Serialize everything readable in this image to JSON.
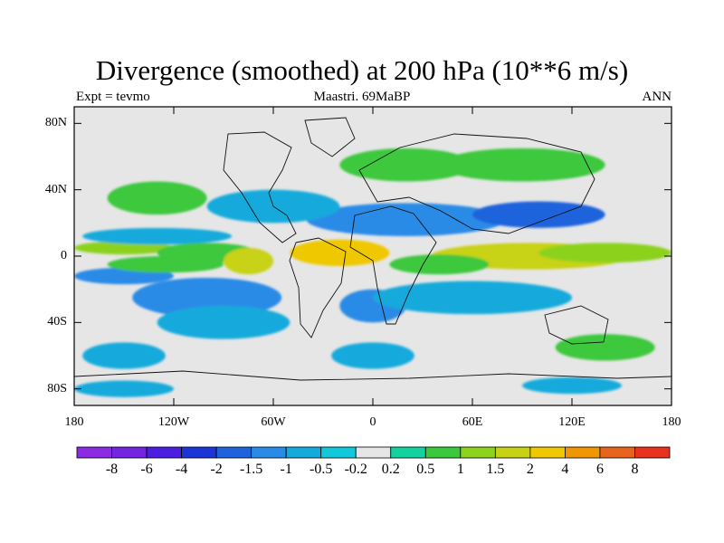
{
  "title": "Divergence (smoothed) at 200 hPa (10**6 m/s)",
  "subtitle_left": "Expt = tevmo",
  "subtitle_center": "Maastri.  69MaBP",
  "subtitle_right": "ANN",
  "y_axis": {
    "ticks": [
      80,
      40,
      0,
      -40,
      -80
    ],
    "labels": [
      "80N",
      "40N",
      "0",
      "40S",
      "80S"
    ],
    "range": [
      -90,
      90
    ]
  },
  "x_axis": {
    "ticks": [
      -180,
      -120,
      -60,
      0,
      60,
      120,
      180
    ],
    "labels": [
      "180",
      "120W",
      "60W",
      "0",
      "60E",
      "120E",
      "180"
    ],
    "range": [
      -180,
      180
    ]
  },
  "colorbar": {
    "colors": [
      "#8b2be2",
      "#7226e0",
      "#4b1ee0",
      "#1c36d6",
      "#1f63dc",
      "#2a8be6",
      "#14aadc",
      "#14c8dc",
      "#e6e6e6",
      "#14d2a0",
      "#3cc83c",
      "#8cd21e",
      "#c8d214",
      "#f0c800",
      "#f09600",
      "#e6641e",
      "#e6321e"
    ],
    "labels": [
      "-8",
      "-6",
      "-4",
      "-2",
      "-1.5",
      "-1",
      "-0.5",
      "-0.2",
      "0.2",
      "0.5",
      "1",
      "1.5",
      "2",
      "4",
      "6",
      "8"
    ]
  },
  "field_blobs": [
    {
      "lon": -150,
      "lat": 5,
      "rx": 30,
      "ry": 4,
      "level": 2
    },
    {
      "lon": -150,
      "lat": -12,
      "rx": 30,
      "ry": 5,
      "level": -2
    },
    {
      "lon": -130,
      "lat": 12,
      "rx": 45,
      "ry": 5,
      "level": -1
    },
    {
      "lon": -125,
      "lat": -5,
      "rx": 35,
      "ry": 5,
      "level": 1
    },
    {
      "lon": -100,
      "lat": 2,
      "rx": 30,
      "ry": 6,
      "level": 1
    },
    {
      "lon": -75,
      "lat": -3,
      "rx": 15,
      "ry": 8,
      "level": 3
    },
    {
      "lon": -20,
      "lat": 2,
      "rx": 30,
      "ry": 8,
      "level": 4
    },
    {
      "lon": 95,
      "lat": 0,
      "rx": 60,
      "ry": 8,
      "level": 3
    },
    {
      "lon": 140,
      "lat": 2,
      "rx": 40,
      "ry": 6,
      "level": 2
    },
    {
      "lon": 40,
      "lat": -5,
      "rx": 30,
      "ry": 6,
      "level": 1
    },
    {
      "lon": -100,
      "lat": -25,
      "rx": 45,
      "ry": 12,
      "level": -2
    },
    {
      "lon": -90,
      "lat": -40,
      "rx": 40,
      "ry": 10,
      "level": -1
    },
    {
      "lon": 0,
      "lat": -30,
      "rx": 20,
      "ry": 10,
      "level": -2
    },
    {
      "lon": 60,
      "lat": -25,
      "rx": 60,
      "ry": 10,
      "level": -1
    },
    {
      "lon": 20,
      "lat": 22,
      "rx": 60,
      "ry": 10,
      "level": -2
    },
    {
      "lon": 100,
      "lat": 25,
      "rx": 40,
      "ry": 8,
      "level": -3
    },
    {
      "lon": -60,
      "lat": 30,
      "rx": 40,
      "ry": 10,
      "level": -1
    },
    {
      "lon": -130,
      "lat": 35,
      "rx": 30,
      "ry": 10,
      "level": 1
    },
    {
      "lon": 20,
      "lat": 55,
      "rx": 40,
      "ry": 10,
      "level": 1
    },
    {
      "lon": 90,
      "lat": 55,
      "rx": 50,
      "ry": 10,
      "level": 1
    },
    {
      "lon": -150,
      "lat": -60,
      "rx": 25,
      "ry": 8,
      "level": -1
    },
    {
      "lon": 140,
      "lat": -55,
      "rx": 30,
      "ry": 8,
      "level": 1
    },
    {
      "lon": 0,
      "lat": -60,
      "rx": 25,
      "ry": 8,
      "level": -1
    },
    {
      "lon": -150,
      "lat": -80,
      "rx": 30,
      "ry": 5,
      "level": -1
    },
    {
      "lon": 120,
      "lat": -78,
      "rx": 30,
      "ry": 5,
      "level": -1
    }
  ]
}
